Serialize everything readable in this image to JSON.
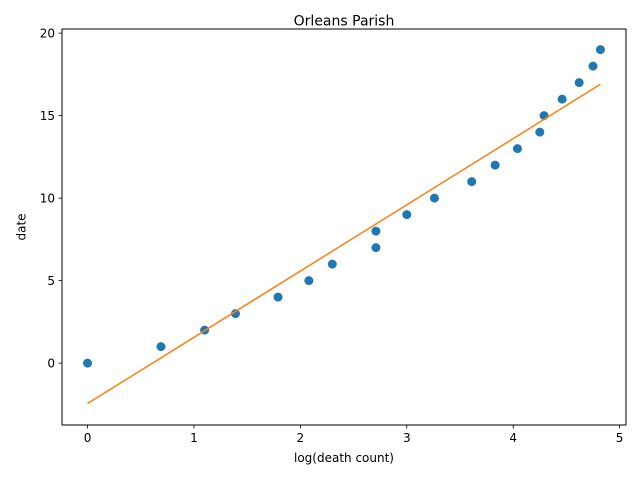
{
  "chart_data": {
    "type": "scatter",
    "title": "Orleans Parish",
    "xlabel": "log(death count)",
    "ylabel": "date",
    "xlim": [
      -0.24,
      5.06
    ],
    "ylim": [
      -3.75,
      20.25
    ],
    "xticks": [
      0,
      1,
      2,
      3,
      4,
      5
    ],
    "yticks": [
      0,
      5,
      10,
      15,
      20
    ],
    "grid": false,
    "series": [
      {
        "kind": "scatter",
        "color": "#1f77b4",
        "points": [
          [
            0.0,
            0
          ],
          [
            0.69,
            1
          ],
          [
            1.1,
            2
          ],
          [
            1.39,
            3
          ],
          [
            1.79,
            4
          ],
          [
            2.08,
            5
          ],
          [
            2.3,
            6
          ],
          [
            2.71,
            7
          ],
          [
            2.71,
            8
          ],
          [
            3.0,
            9
          ],
          [
            3.26,
            10
          ],
          [
            3.61,
            11
          ],
          [
            3.83,
            12
          ],
          [
            4.04,
            13
          ],
          [
            4.25,
            14
          ],
          [
            4.29,
            15
          ],
          [
            4.46,
            16
          ],
          [
            4.62,
            17
          ],
          [
            4.75,
            18
          ],
          [
            4.82,
            19
          ]
        ]
      },
      {
        "kind": "line",
        "color": "#ff7f0e",
        "points": [
          [
            0.0,
            -2.45
          ],
          [
            4.82,
            16.9
          ]
        ]
      }
    ]
  }
}
